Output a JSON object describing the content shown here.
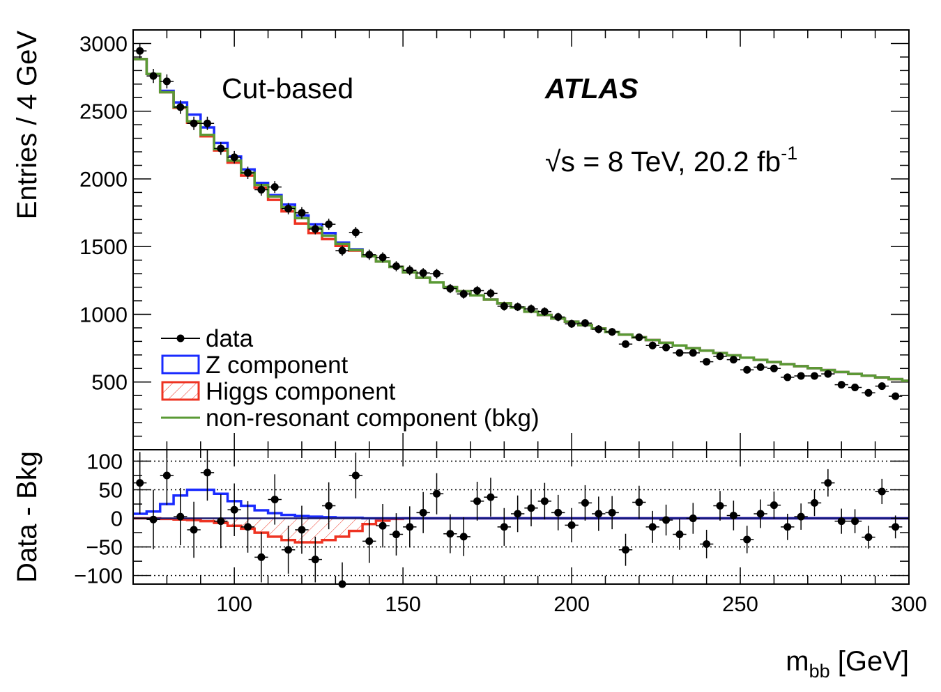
{
  "chart_data": {
    "type": "histogram_with_residuals",
    "label": "Cut-based",
    "experiment": "ATLAS",
    "energy_text": "√s = 8 TeV, 20.2 fb",
    "energy_superscript": "-1",
    "xlabel": "m",
    "xlabel_sub": "bb",
    "xlabel_unit": " [GeV]",
    "xlim": [
      70,
      300
    ],
    "x_ticks": [
      100,
      150,
      200,
      250,
      300
    ],
    "main": {
      "ylabel": "Entries / 4 GeV",
      "ylim": [
        0,
        3100
      ],
      "y_ticks": [
        500,
        1000,
        1500,
        2000,
        2500,
        3000
      ],
      "bin_edges": [
        70,
        74,
        78,
        82,
        86,
        90,
        94,
        98,
        102,
        106,
        110,
        114,
        118,
        122,
        126,
        130,
        134,
        138,
        142,
        146,
        150,
        154,
        158,
        162,
        166,
        170,
        174,
        178,
        182,
        186,
        190,
        194,
        198,
        202,
        206,
        210,
        214,
        218,
        222,
        226,
        230,
        234,
        238,
        242,
        246,
        250,
        254,
        258,
        262,
        266,
        270,
        274,
        278,
        282,
        286,
        290,
        294,
        298,
        302
      ],
      "data_x": [
        72,
        76,
        80,
        84,
        88,
        92,
        96,
        100,
        104,
        108,
        112,
        116,
        120,
        124,
        128,
        132,
        136,
        140,
        144,
        148,
        152,
        156,
        160,
        164,
        168,
        172,
        176,
        180,
        184,
        188,
        192,
        196,
        200,
        204,
        208,
        212,
        216,
        220,
        224,
        228,
        232,
        236,
        240,
        244,
        248,
        252,
        256,
        260,
        264,
        268,
        272,
        276,
        280,
        284,
        288,
        292,
        296
      ],
      "data_y": [
        2945,
        2760,
        2720,
        2530,
        2410,
        2410,
        2225,
        2160,
        2045,
        1920,
        1940,
        1780,
        1750,
        1630,
        1665,
        1470,
        1605,
        1440,
        1420,
        1355,
        1325,
        1305,
        1300,
        1190,
        1150,
        1175,
        1155,
        1060,
        1055,
        1040,
        1020,
        980,
        930,
        935,
        890,
        870,
        780,
        830,
        770,
        755,
        715,
        715,
        650,
        690,
        665,
        590,
        610,
        600,
        535,
        545,
        545,
        560,
        480,
        460,
        420,
        470,
        395
      ],
      "data_err": [
        54,
        52,
        52,
        50,
        49,
        49,
        47,
        46,
        45,
        44,
        44,
        42,
        42,
        40,
        41,
        38,
        40,
        38,
        38,
        37,
        36,
        36,
        36,
        34,
        34,
        34,
        34,
        33,
        32,
        32,
        32,
        31,
        30,
        31,
        30,
        29,
        28,
        29,
        28,
        27,
        27,
        27,
        25,
        26,
        26,
        24,
        25,
        24,
        23,
        23,
        23,
        24,
        22,
        21,
        20,
        22,
        20
      ],
      "series": [
        {
          "name": "Z component",
          "color": "#1a2bff",
          "values": [
            2885,
            2775,
            2650,
            2565,
            2475,
            2380,
            2265,
            2165,
            2070,
            1970,
            1880,
            1810,
            1730,
            1665,
            1600,
            1530,
            1480,
            1430,
            1390,
            1350,
            1310,
            1270,
            1235,
            1200,
            1170,
            1140,
            1110,
            1080,
            1050,
            1020,
            995,
            970,
            945,
            920,
            895,
            870,
            850,
            830,
            810,
            790,
            770,
            750,
            732,
            714,
            697,
            680,
            664,
            648,
            632,
            617,
            602,
            588,
            574,
            560,
            547,
            534,
            521,
            509
          ]
        },
        {
          "name": "Higgs component",
          "color": "#ee3322",
          "values": [
            2885,
            2775,
            2640,
            2525,
            2415,
            2315,
            2210,
            2120,
            2025,
            1935,
            1845,
            1760,
            1670,
            1600,
            1555,
            1505,
            1470,
            1430,
            1390,
            1350,
            1310,
            1270,
            1235,
            1200,
            1170,
            1140,
            1110,
            1080,
            1050,
            1020,
            995,
            970,
            945,
            920,
            895,
            870,
            850,
            830,
            810,
            790,
            770,
            750,
            732,
            714,
            697,
            680,
            664,
            648,
            632,
            617,
            602,
            588,
            574,
            560,
            547,
            534,
            521,
            509
          ]
        },
        {
          "name": "non-resonant component (bkg)",
          "color": "#5a9a35",
          "values": [
            2885,
            2775,
            2640,
            2530,
            2425,
            2325,
            2220,
            2135,
            2045,
            1955,
            1870,
            1790,
            1710,
            1640,
            1580,
            1520,
            1475,
            1430,
            1390,
            1350,
            1310,
            1270,
            1235,
            1200,
            1170,
            1140,
            1110,
            1080,
            1050,
            1020,
            995,
            970,
            945,
            920,
            895,
            870,
            850,
            830,
            810,
            790,
            770,
            750,
            732,
            714,
            697,
            680,
            664,
            648,
            632,
            617,
            602,
            588,
            574,
            560,
            547,
            534,
            521,
            509
          ]
        }
      ]
    },
    "ratio": {
      "ylabel": "Data - Bkg",
      "ylim": [
        -115,
        120
      ],
      "y_ticks": [
        -100,
        -50,
        0,
        50,
        100
      ],
      "y_tick_labels": [
        "−100",
        "−50",
        "0",
        "50",
        "100"
      ],
      "data_y": [
        62,
        -2,
        75,
        3,
        -20,
        80,
        -5,
        15,
        -15,
        -68,
        33,
        -55,
        -20,
        -72,
        22,
        -115,
        75,
        -40,
        -13,
        -28,
        -15,
        10,
        43,
        -27,
        -32,
        30,
        37,
        -15,
        8,
        18,
        30,
        10,
        -12,
        27,
        8,
        10,
        -55,
        28,
        -15,
        -3,
        -28,
        0,
        -45,
        22,
        5,
        -37,
        8,
        23,
        -15,
        3,
        27,
        62,
        -5,
        -5,
        -33,
        47,
        -15
      ],
      "data_err": [
        54,
        52,
        52,
        50,
        49,
        49,
        47,
        46,
        45,
        44,
        44,
        42,
        42,
        40,
        41,
        38,
        40,
        38,
        38,
        37,
        36,
        36,
        36,
        34,
        34,
        34,
        34,
        33,
        32,
        32,
        32,
        31,
        30,
        31,
        30,
        29,
        28,
        29,
        28,
        27,
        27,
        27,
        25,
        26,
        26,
        24,
        25,
        24,
        23,
        23,
        23,
        24,
        22,
        21,
        20,
        22,
        20
      ],
      "z_curve": [
        8,
        12,
        25,
        40,
        50,
        50,
        43,
        30,
        22,
        14,
        9,
        6,
        4,
        3,
        2,
        1,
        1,
        0,
        0,
        0,
        0,
        0,
        0,
        0,
        0,
        0,
        0,
        0,
        0,
        0,
        0,
        0,
        0,
        0,
        0,
        0,
        0,
        0,
        0,
        0,
        0,
        0,
        0,
        0,
        0,
        0,
        0,
        0,
        0,
        0,
        0,
        0,
        0,
        0,
        0,
        0,
        0,
        0
      ],
      "higgs_curve": [
        0,
        0,
        -1,
        -2,
        -3,
        -5,
        -8,
        -13,
        -18,
        -25,
        -32,
        -38,
        -42,
        -42,
        -38,
        -32,
        -22,
        -10,
        -4,
        -1,
        0,
        0,
        0,
        0,
        0,
        0,
        0,
        0,
        0,
        0,
        0,
        0,
        0,
        0,
        0,
        0,
        0,
        0,
        0,
        0,
        0,
        0,
        0,
        0,
        0,
        0,
        0,
        0,
        0,
        0,
        0,
        0,
        0,
        0,
        0,
        0,
        0,
        0
      ]
    },
    "legend": [
      {
        "label": "data",
        "style": "marker"
      },
      {
        "label": "Z component",
        "style": "box",
        "color": "#1a2bff"
      },
      {
        "label": "Higgs component",
        "style": "hatched-box",
        "color": "#ee3322"
      },
      {
        "label": "non-resonant component (bkg)",
        "style": "line",
        "color": "#5a9a35"
      }
    ]
  }
}
